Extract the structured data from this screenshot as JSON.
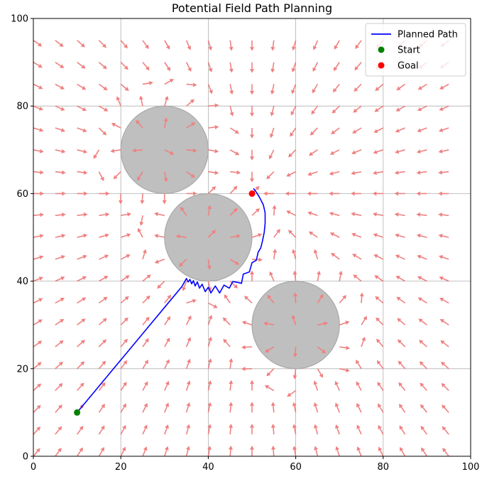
{
  "chart_data": {
    "type": "line",
    "title": "Potential Field Path Planning",
    "xlabel": "",
    "ylabel": "",
    "xlim": [
      0,
      100
    ],
    "ylim": [
      0,
      100
    ],
    "xticks": [
      "0",
      "20",
      "40",
      "60",
      "80",
      "100"
    ],
    "yticks": [
      "0",
      "20",
      "40",
      "60",
      "80",
      "100"
    ],
    "grid": true,
    "legend_position": "top-right",
    "colors": {
      "path": "#0000ff",
      "start": "#008000",
      "goal": "#ff0000",
      "obstacle": "#bfbfbf",
      "field": "#f08080"
    },
    "legend": [
      {
        "label": "Planned Path",
        "kind": "line",
        "color": "#0000ff"
      },
      {
        "label": "Start",
        "kind": "point",
        "color": "#008000"
      },
      {
        "label": "Goal",
        "kind": "point",
        "color": "#ff0000"
      }
    ],
    "start": {
      "x": 10,
      "y": 10
    },
    "goal": {
      "x": 50,
      "y": 60
    },
    "obstacles": [
      {
        "cx": 30,
        "cy": 70,
        "r": 10
      },
      {
        "cx": 40,
        "cy": 50,
        "r": 10
      },
      {
        "cx": 60,
        "cy": 30,
        "r": 10
      }
    ],
    "path": [
      [
        10,
        10
      ],
      [
        14,
        14.8
      ],
      [
        18,
        19.6
      ],
      [
        22,
        24.4
      ],
      [
        26,
        29.2
      ],
      [
        30,
        34
      ],
      [
        34,
        38.8
      ],
      [
        35,
        40.6
      ],
      [
        35.4,
        39.8
      ],
      [
        35.8,
        40.4
      ],
      [
        36.2,
        39.4
      ],
      [
        36.6,
        40.1
      ],
      [
        37,
        38.9
      ],
      [
        37.5,
        39.8
      ],
      [
        38,
        38.4
      ],
      [
        38.6,
        39.3
      ],
      [
        39.3,
        37.6
      ],
      [
        40,
        38.6
      ],
      [
        40.6,
        37.3
      ],
      [
        41.6,
        38.9
      ],
      [
        42.6,
        37.3
      ],
      [
        43.6,
        39.1
      ],
      [
        44.8,
        38.4
      ],
      [
        45.6,
        39.9
      ],
      [
        46.8,
        39.7
      ],
      [
        47.6,
        39.5
      ],
      [
        48,
        41.6
      ],
      [
        49.4,
        42.1
      ],
      [
        50,
        44.2
      ],
      [
        51,
        44.8
      ],
      [
        51.4,
        46.6
      ],
      [
        52,
        47.6
      ],
      [
        52.4,
        49.2
      ],
      [
        52.8,
        51.2
      ],
      [
        53,
        53.2
      ],
      [
        53,
        55.6
      ],
      [
        52.6,
        57.4
      ],
      [
        51.8,
        59
      ],
      [
        51,
        60.3
      ],
      [
        50.4,
        61.1
      ],
      [
        50.6,
        60.8
      ],
      [
        50.5,
        60.9
      ]
    ],
    "field_grid": {
      "xmin": 0,
      "xmax": 95,
      "ymin": 0,
      "ymax": 95,
      "step": 5
    }
  }
}
